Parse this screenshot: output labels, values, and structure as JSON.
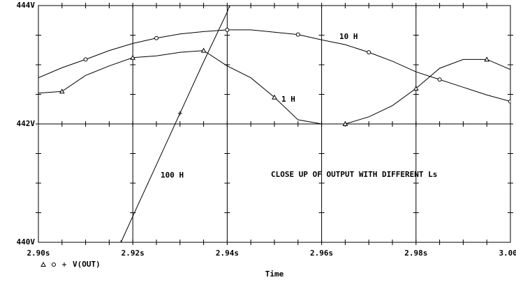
{
  "chart_data": {
    "type": "line",
    "annotation": "CLOSE UP OF OUTPUT WITH DIFFERENT Ls",
    "x_label": "Time",
    "legend_label": "V(OUT)",
    "x": [
      2.9,
      2.905,
      2.91,
      2.915,
      2.92,
      2.925,
      2.93,
      2.935,
      2.94,
      2.945,
      2.95,
      2.955,
      2.96,
      2.965,
      2.97,
      2.975,
      2.98,
      2.985,
      2.99,
      2.995,
      3.0
    ],
    "series": [
      {
        "name": "1 H",
        "color": "#000000",
        "marker": "triangle",
        "values": [
          442.52,
          442.55,
          442.82,
          442.98,
          443.12,
          443.15,
          443.21,
          443.24,
          442.98,
          442.78,
          442.45,
          442.07,
          442.0,
          442.0,
          442.12,
          442.31,
          442.6,
          442.94,
          443.09,
          443.09,
          442.92
        ]
      },
      {
        "name": "10 H",
        "color": "#000000",
        "marker": "circle",
        "values": [
          442.78,
          442.95,
          443.09,
          443.24,
          443.36,
          443.45,
          443.52,
          443.56,
          443.59,
          443.59,
          443.55,
          443.51,
          443.42,
          443.34,
          443.21,
          443.06,
          442.88,
          442.75,
          442.62,
          442.49,
          442.38
        ]
      },
      {
        "name": "100 H",
        "color": "#000000",
        "marker": "plus",
        "x": [
          2.9175,
          2.92,
          2.925,
          2.93,
          2.935,
          2.94,
          2.9405
        ],
        "values": [
          440.0,
          440.44,
          441.31,
          442.18,
          443.05,
          443.89,
          444.0
        ]
      }
    ],
    "xlim": [
      2.9,
      3.0
    ],
    "xticks": [
      {
        "value": 2.9,
        "label": "2.90s"
      },
      {
        "value": 2.92,
        "label": "2.92s"
      },
      {
        "value": 2.94,
        "label": "2.94s"
      },
      {
        "value": 2.96,
        "label": "2.96s"
      },
      {
        "value": 2.98,
        "label": "2.98s"
      },
      {
        "value": 3.0,
        "label": "3.00s"
      }
    ],
    "ylim": [
      440,
      444
    ],
    "yticks": [
      {
        "value": 440,
        "label": "440V"
      },
      {
        "value": 442,
        "label": "442V"
      },
      {
        "value": 444,
        "label": "444V"
      }
    ],
    "grid": true
  }
}
